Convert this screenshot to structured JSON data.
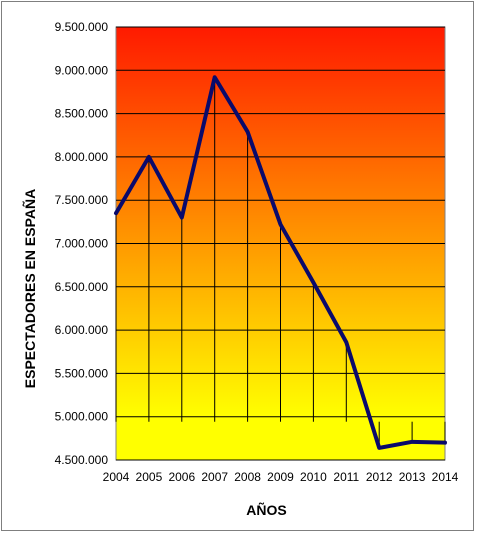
{
  "chart_data": {
    "type": "line",
    "xlabel": "AÑOS",
    "ylabel": "ESPECTADORES EN ESPAÑA",
    "x": [
      2004,
      2005,
      2006,
      2007,
      2008,
      2009,
      2010,
      2011,
      2012,
      2013,
      2014
    ],
    "series": [
      {
        "values": [
          7350000,
          8000000,
          7300000,
          8920000,
          8290000,
          7220000,
          6550000,
          5860000,
          4640000,
          4710000,
          4700000
        ]
      }
    ],
    "ylim": [
      4500000,
      9500000
    ],
    "yticks": [
      4500000,
      5000000,
      5500000,
      6000000,
      6500000,
      7000000,
      7500000,
      8000000,
      8500000,
      9000000,
      9500000
    ],
    "ytick_labels": [
      "4.500.000",
      "5.000.000",
      "5.500.000",
      "6.000.000",
      "6.500.000",
      "7.000.000",
      "7.500.000",
      "8.000.000",
      "8.500.000",
      "9.000.000",
      "9.500.000"
    ],
    "xtick_labels": [
      "2004",
      "2005",
      "2006",
      "2007",
      "2008",
      "2009",
      "2010",
      "2011",
      "2012",
      "2013",
      "2014"
    ],
    "grid": true,
    "line_color": "#0a0a6b",
    "background_gradient": [
      "#ff1a00",
      "#ffff00"
    ]
  }
}
